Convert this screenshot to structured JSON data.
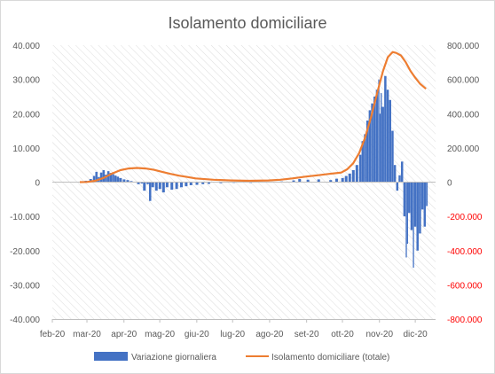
{
  "chart_data": {
    "type": "bar+line",
    "title": "Isolamento domiciliare",
    "x_tick_labels": [
      "feb-20",
      "mar-20",
      "apr-20",
      "mag-20",
      "giu-20",
      "lug-20",
      "ago-20",
      "set-20",
      "ott-20",
      "nov-20",
      "dic-20"
    ],
    "y_left": {
      "min": -40000,
      "max": 40000,
      "step": 10000,
      "tick_labels": [
        "-40.000",
        "-30.000",
        "-20.000",
        "-10.000",
        "0",
        "10.000",
        "20.000",
        "30.000",
        "40.000"
      ]
    },
    "y_right": {
      "min": -800000,
      "max": 800000,
      "step": 200000,
      "color": "#ff0000",
      "tick_labels": [
        "-800.000",
        "-600.000",
        "-400.000",
        "-200.000",
        "0",
        "200.000",
        "400.000",
        "600.000",
        "800.000"
      ]
    },
    "grid": "diagonal-hatch",
    "legend_position": "bottom",
    "series": [
      {
        "name": "Variazione giornaliera",
        "kind": "bar",
        "axis": "left",
        "color": "#4472c4",
        "points": [
          [
            "2020-02-24",
            200
          ],
          [
            "2020-02-28",
            400
          ],
          [
            "2020-03-03",
            900
          ],
          [
            "2020-03-06",
            1800
          ],
          [
            "2020-03-08",
            3000
          ],
          [
            "2020-03-10",
            1500
          ],
          [
            "2020-03-12",
            2800
          ],
          [
            "2020-03-14",
            3500
          ],
          [
            "2020-03-16",
            2200
          ],
          [
            "2020-03-18",
            3200
          ],
          [
            "2020-03-20",
            2700
          ],
          [
            "2020-03-22",
            2300
          ],
          [
            "2020-03-24",
            1900
          ],
          [
            "2020-03-26",
            1600
          ],
          [
            "2020-03-28",
            1200
          ],
          [
            "2020-03-31",
            800
          ],
          [
            "2020-04-03",
            600
          ],
          [
            "2020-04-06",
            300
          ],
          [
            "2020-04-09",
            100
          ],
          [
            "2020-04-12",
            -600
          ],
          [
            "2020-04-15",
            -400
          ],
          [
            "2020-04-17",
            -2500
          ],
          [
            "2020-04-20",
            -600
          ],
          [
            "2020-04-22",
            -5500
          ],
          [
            "2020-04-24",
            -1500
          ],
          [
            "2020-04-27",
            -2500
          ],
          [
            "2020-04-30",
            -2000
          ],
          [
            "2020-05-03",
            -3000
          ],
          [
            "2020-05-06",
            -1500
          ],
          [
            "2020-05-10",
            -2200
          ],
          [
            "2020-05-14",
            -2000
          ],
          [
            "2020-05-18",
            -1500
          ],
          [
            "2020-05-22",
            -1200
          ],
          [
            "2020-05-26",
            -900
          ],
          [
            "2020-05-31",
            -800
          ],
          [
            "2020-06-05",
            -600
          ],
          [
            "2020-06-10",
            -500
          ],
          [
            "2020-06-20",
            -300
          ],
          [
            "2020-07-01",
            -200
          ],
          [
            "2020-07-15",
            -100
          ],
          [
            "2020-08-01",
            100
          ],
          [
            "2020-08-10",
            200
          ],
          [
            "2020-08-20",
            500
          ],
          [
            "2020-08-25",
            900
          ],
          [
            "2020-09-01",
            700
          ],
          [
            "2020-09-10",
            800
          ],
          [
            "2020-09-20",
            600
          ],
          [
            "2020-09-25",
            1000
          ],
          [
            "2020-09-30",
            1200
          ],
          [
            "2020-10-03",
            1800
          ],
          [
            "2020-10-06",
            2500
          ],
          [
            "2020-10-09",
            3500
          ],
          [
            "2020-10-12",
            5000
          ],
          [
            "2020-10-15",
            8000
          ],
          [
            "2020-10-17",
            12000
          ],
          [
            "2020-10-19",
            14000
          ],
          [
            "2020-10-21",
            18000
          ],
          [
            "2020-10-23",
            21000
          ],
          [
            "2020-10-25",
            23000
          ],
          [
            "2020-10-27",
            25000
          ],
          [
            "2020-10-29",
            27000
          ],
          [
            "2020-10-31",
            30000
          ],
          [
            "2020-11-01",
            20000
          ],
          [
            "2020-11-02",
            26000
          ],
          [
            "2020-11-03",
            22000
          ],
          [
            "2020-11-05",
            31000
          ],
          [
            "2020-11-07",
            27000
          ],
          [
            "2020-11-09",
            24000
          ],
          [
            "2020-11-11",
            15000
          ],
          [
            "2020-11-13",
            5000
          ],
          [
            "2020-11-15",
            -2500
          ],
          [
            "2020-11-17",
            2000
          ],
          [
            "2020-11-19",
            6000
          ],
          [
            "2020-11-21",
            -10000
          ],
          [
            "2020-11-23",
            -22000
          ],
          [
            "2020-11-24",
            -18000
          ],
          [
            "2020-11-25",
            -9000
          ],
          [
            "2020-11-27",
            -14000
          ],
          [
            "2020-11-29",
            -25000
          ],
          [
            "2020-11-30",
            -13000
          ],
          [
            "2020-12-02",
            -20000
          ],
          [
            "2020-12-04",
            -15000
          ],
          [
            "2020-12-06",
            -8000
          ],
          [
            "2020-12-08",
            -13000
          ],
          [
            "2020-12-10",
            -7000
          ]
        ]
      },
      {
        "name": "Isolamento domiciliare (totale)",
        "kind": "line",
        "axis": "right",
        "color": "#ed7d31",
        "points": [
          [
            "2020-02-24",
            200
          ],
          [
            "2020-03-01",
            1000
          ],
          [
            "2020-03-08",
            8000
          ],
          [
            "2020-03-15",
            25000
          ],
          [
            "2020-03-22",
            50000
          ],
          [
            "2020-03-29",
            70000
          ],
          [
            "2020-04-05",
            80000
          ],
          [
            "2020-04-12",
            83000
          ],
          [
            "2020-04-19",
            80000
          ],
          [
            "2020-04-26",
            72000
          ],
          [
            "2020-05-03",
            60000
          ],
          [
            "2020-05-10",
            48000
          ],
          [
            "2020-05-17",
            38000
          ],
          [
            "2020-05-24",
            30000
          ],
          [
            "2020-05-31",
            22000
          ],
          [
            "2020-06-15",
            14000
          ],
          [
            "2020-06-30",
            10000
          ],
          [
            "2020-07-15",
            8000
          ],
          [
            "2020-07-31",
            10000
          ],
          [
            "2020-08-10",
            14000
          ],
          [
            "2020-08-20",
            22000
          ],
          [
            "2020-08-31",
            32000
          ],
          [
            "2020-09-10",
            40000
          ],
          [
            "2020-09-20",
            48000
          ],
          [
            "2020-09-30",
            56000
          ],
          [
            "2020-10-05",
            75000
          ],
          [
            "2020-10-10",
            110000
          ],
          [
            "2020-10-15",
            170000
          ],
          [
            "2020-10-20",
            260000
          ],
          [
            "2020-10-25",
            380000
          ],
          [
            "2020-10-30",
            520000
          ],
          [
            "2020-11-04",
            650000
          ],
          [
            "2020-11-08",
            730000
          ],
          [
            "2020-11-12",
            760000
          ],
          [
            "2020-11-15",
            755000
          ],
          [
            "2020-11-19",
            740000
          ],
          [
            "2020-11-23",
            700000
          ],
          [
            "2020-11-27",
            650000
          ],
          [
            "2020-12-01",
            610000
          ],
          [
            "2020-12-05",
            575000
          ],
          [
            "2020-12-10",
            545000
          ]
        ]
      }
    ]
  }
}
